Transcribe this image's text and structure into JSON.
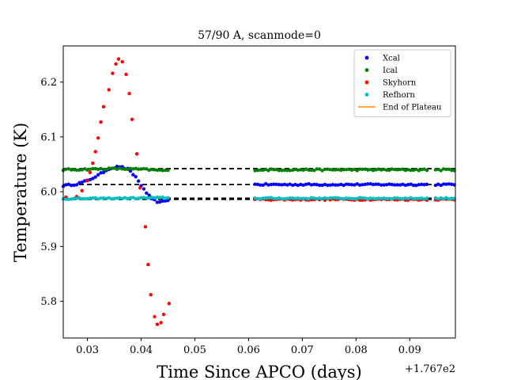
{
  "chart_data": {
    "type": "scatter",
    "title": "57/90 A, scanmode=0",
    "xlabel": "Time Since APCO (days)",
    "ylabel": "Temperature (K)",
    "x_offset_label": "+1.767e2",
    "xlim": [
      0.0255,
      0.0985
    ],
    "ylim": [
      5.733,
      6.266
    ],
    "x_ticks": [
      0.03,
      0.04,
      0.05,
      0.06,
      0.07,
      0.08,
      0.09
    ],
    "x_tick_labels": [
      "0.03",
      "0.04",
      "0.05",
      "0.06",
      "0.07",
      "0.08",
      "0.09"
    ],
    "y_ticks": [
      5.8,
      5.9,
      6.0,
      6.1,
      6.2
    ],
    "y_tick_labels": [
      "5.8",
      "5.9",
      "6.0",
      "6.1",
      "6.2"
    ],
    "grid": false,
    "legend_position": "top-right",
    "segments": [
      [
        0.0255,
        0.0452
      ],
      [
        0.0612,
        0.0932
      ],
      [
        0.0948,
        0.0985
      ]
    ],
    "reference_lines": [
      6.042,
      6.013,
      5.988,
      5.986
    ],
    "reference_line_color": "#000000",
    "series": [
      {
        "name": "Xcal",
        "color": "#0000ff",
        "baseline": 6.013,
        "jitter": 0.0015,
        "bump": [
          [
            0.0255,
            6.011
          ],
          [
            0.028,
            6.014
          ],
          [
            0.03,
            6.02
          ],
          [
            0.032,
            6.03
          ],
          [
            0.034,
            6.042
          ],
          [
            0.036,
            6.046
          ],
          [
            0.0375,
            6.041
          ],
          [
            0.039,
            6.027
          ],
          [
            0.0405,
            6.004
          ],
          [
            0.042,
            5.986
          ],
          [
            0.0435,
            5.98
          ],
          [
            0.0452,
            5.986
          ]
        ]
      },
      {
        "name": "Ical",
        "color": "#008000",
        "baseline": 6.04,
        "jitter": 0.0015,
        "bump": [
          [
            0.0255,
            6.04
          ],
          [
            0.035,
            6.042
          ],
          [
            0.04,
            6.041
          ],
          [
            0.0452,
            6.038
          ]
        ]
      },
      {
        "name": "Skyhorn",
        "color": "#ff0000",
        "baseline": 5.986,
        "jitter": 0.0015,
        "points": [
          [
            0.026,
            5.99
          ],
          [
            0.028,
            5.991
          ],
          [
            0.029,
            6.002
          ],
          [
            0.03,
            6.02
          ],
          [
            0.0305,
            6.035
          ],
          [
            0.031,
            6.052
          ],
          [
            0.0315,
            6.073
          ],
          [
            0.032,
            6.098
          ],
          [
            0.0325,
            6.127
          ],
          [
            0.033,
            6.155
          ],
          [
            0.034,
            6.186
          ],
          [
            0.0347,
            6.216
          ],
          [
            0.0353,
            6.233
          ],
          [
            0.0358,
            6.242
          ],
          [
            0.0365,
            6.237
          ],
          [
            0.0372,
            6.214
          ],
          [
            0.0378,
            6.179
          ],
          [
            0.0383,
            6.132
          ],
          [
            0.0392,
            6.069
          ],
          [
            0.0398,
            6.007
          ],
          [
            0.0408,
            5.936
          ],
          [
            0.0413,
            5.867
          ],
          [
            0.0418,
            5.812
          ],
          [
            0.0425,
            5.772
          ],
          [
            0.043,
            5.758
          ],
          [
            0.0437,
            5.761
          ],
          [
            0.0442,
            5.776
          ],
          [
            0.0452,
            5.796
          ]
        ]
      },
      {
        "name": "Refhorn",
        "color": "#00bfbf",
        "baseline": 5.988,
        "jitter": 0.0012,
        "bump": [
          [
            0.0255,
            5.987
          ],
          [
            0.0452,
            5.989
          ]
        ]
      },
      {
        "name": "End of Plateau",
        "color": "#ff8c00",
        "line": true
      }
    ]
  }
}
